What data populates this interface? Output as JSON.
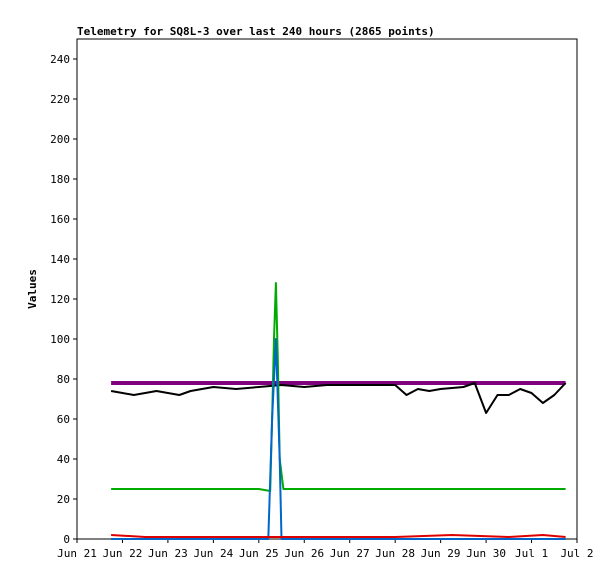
{
  "chart_data": {
    "type": "line",
    "title": "Telemetry for SQ8L-3 over last 240 hours (2865 points)",
    "xlabel": "",
    "ylabel": "Values",
    "xlim": [
      "2024-06-21",
      "2024-07-02"
    ],
    "ylim": [
      0,
      250
    ],
    "x_ticks": [
      "Jun 21",
      "Jun 22",
      "Jun 23",
      "Jun 24",
      "Jun 25",
      "Jun 26",
      "Jun 27",
      "Jun 28",
      "Jun 29",
      "Jun 30",
      "Jul 1",
      "Jul 2"
    ],
    "y_ticks": [
      0,
      20,
      40,
      60,
      80,
      100,
      120,
      140,
      160,
      180,
      200,
      220,
      240
    ],
    "grid": false,
    "legend": "none",
    "series": [
      {
        "color": "#800080",
        "x": [
          "2024-06-21T18:00",
          "2024-07-01T18:00"
        ],
        "values": [
          78,
          78
        ]
      },
      {
        "color": "#000000",
        "x": [
          "2024-06-21T18:00",
          "2024-06-22T00:00",
          "2024-06-22T06:00",
          "2024-06-22T12:00",
          "2024-06-22T18:00",
          "2024-06-23T00:00",
          "2024-06-23T06:00",
          "2024-06-23T12:00",
          "2024-06-23T18:00",
          "2024-06-24T00:00",
          "2024-06-24T12:00",
          "2024-06-25T00:00",
          "2024-06-25T12:00",
          "2024-06-26T00:00",
          "2024-06-26T12:00",
          "2024-06-27T00:00",
          "2024-06-27T12:00",
          "2024-06-28T00:00",
          "2024-06-28T06:00",
          "2024-06-28T12:00",
          "2024-06-28T18:00",
          "2024-06-29T00:00",
          "2024-06-29T12:00",
          "2024-06-29T18:00",
          "2024-06-30T00:00",
          "2024-06-30T06:00",
          "2024-06-30T12:00",
          "2024-06-30T18:00",
          "2024-07-01T00:00",
          "2024-07-01T06:00",
          "2024-07-01T12:00",
          "2024-07-01T18:00"
        ],
        "values": [
          74,
          73,
          72,
          73,
          74,
          73,
          72,
          74,
          75,
          76,
          75,
          76,
          77,
          76,
          77,
          77,
          77,
          77,
          72,
          75,
          74,
          75,
          76,
          78,
          63,
          72,
          72,
          75,
          73,
          68,
          72,
          78
        ]
      },
      {
        "color": "#00aa00",
        "x": [
          "2024-06-21T18:00",
          "2024-06-25T00:00",
          "2024-06-25T06:00",
          "2024-06-25T07:00",
          "2024-06-25T08:00",
          "2024-06-25T09:00",
          "2024-06-25T10:00",
          "2024-06-25T11:00",
          "2024-06-25T13:00",
          "2024-07-01T18:00"
        ],
        "values": [
          25,
          25,
          24,
          60,
          100,
          128,
          90,
          40,
          25,
          25
        ]
      },
      {
        "color": "#0066cc",
        "x": [
          "2024-06-21T18:00",
          "2024-06-25T05:00",
          "2024-06-25T07:00",
          "2024-06-25T09:00",
          "2024-06-25T11:00",
          "2024-06-25T12:00",
          "2024-07-01T18:00"
        ],
        "values": [
          0,
          0,
          60,
          100,
          40,
          0,
          0
        ]
      },
      {
        "color": "#dd0000",
        "x": [
          "2024-06-21T18:00",
          "2024-06-22T12:00",
          "2024-06-24T00:00",
          "2024-06-26T12:00",
          "2024-06-28T00:00",
          "2024-06-29T06:00",
          "2024-06-30T12:00",
          "2024-07-01T06:00",
          "2024-07-01T18:00"
        ],
        "values": [
          2,
          1,
          1,
          1,
          1,
          2,
          1,
          2,
          1
        ]
      }
    ]
  }
}
